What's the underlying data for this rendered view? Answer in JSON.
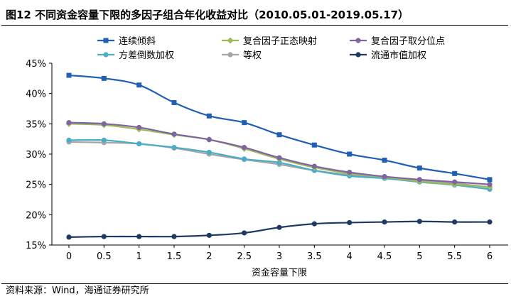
{
  "header": {
    "title": "图12 不同资金容量下限的多因子组合年化收益对比（2010.05.01-2019.05.17）"
  },
  "footer": {
    "source": "资料来源：Wind，海通证券研究所"
  },
  "chart_data": {
    "type": "line",
    "title": "图12 不同资金容量下限的多因子组合年化收益对比（2010.05.01-2019.05.17）",
    "xlabel": "资金容量下限",
    "ylabel": "",
    "x": [
      0,
      0.5,
      1,
      1.5,
      2,
      2.5,
      3,
      3.5,
      4,
      4.5,
      5,
      5.5,
      6
    ],
    "x_tick_labels": [
      "0",
      "0.5",
      "1",
      "1.5",
      "2",
      "2.5",
      "3",
      "3.5",
      "4",
      "4.5",
      "5",
      "5.5",
      "6"
    ],
    "ylim": [
      0.15,
      0.45
    ],
    "y_ticks": [
      0.15,
      0.2,
      0.25,
      0.3,
      0.35,
      0.4,
      0.45
    ],
    "y_tick_labels": [
      "15%",
      "20%",
      "25%",
      "30%",
      "35%",
      "40%",
      "45%"
    ],
    "grid": false,
    "legend_position": "top",
    "series": [
      {
        "name": "连续倾斜",
        "color": "#1F5FB4",
        "marker": "square",
        "values": [
          0.43,
          0.425,
          0.414,
          0.385,
          0.363,
          0.352,
          0.332,
          0.315,
          0.3,
          0.29,
          0.277,
          0.268,
          0.258
        ]
      },
      {
        "name": "复合因子正态映射",
        "color": "#9BBB59",
        "marker": "diamond",
        "values": [
          0.35,
          0.348,
          0.341,
          0.332,
          0.324,
          0.309,
          0.292,
          0.278,
          0.268,
          0.262,
          0.255,
          0.25,
          0.246
        ]
      },
      {
        "name": "复合因子取分位点",
        "color": "#8064A2",
        "marker": "circle",
        "values": [
          0.352,
          0.35,
          0.344,
          0.333,
          0.324,
          0.311,
          0.294,
          0.28,
          0.27,
          0.263,
          0.258,
          0.254,
          0.25
        ]
      },
      {
        "name": "方差倒数加权",
        "color": "#4BACC6",
        "marker": "circle",
        "values": [
          0.323,
          0.323,
          0.317,
          0.311,
          0.303,
          0.292,
          0.286,
          0.273,
          0.264,
          0.26,
          0.254,
          0.249,
          0.242
        ]
      },
      {
        "name": "等权",
        "color": "#A6A6A6",
        "marker": "circle",
        "values": [
          0.32,
          0.319,
          0.317,
          0.31,
          0.3,
          0.291,
          0.283,
          0.273,
          0.266,
          0.262,
          0.257,
          0.252,
          0.245
        ]
      },
      {
        "name": "流通市值加权",
        "color": "#1F3864",
        "marker": "circle",
        "values": [
          0.163,
          0.164,
          0.164,
          0.164,
          0.166,
          0.17,
          0.179,
          0.185,
          0.187,
          0.188,
          0.189,
          0.188,
          0.188
        ]
      }
    ]
  }
}
